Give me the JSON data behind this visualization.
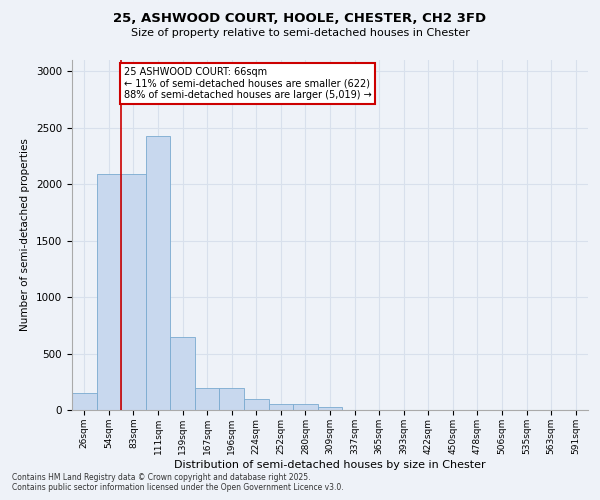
{
  "title_line1": "25, ASHWOOD COURT, HOOLE, CHESTER, CH2 3FD",
  "title_line2": "Size of property relative to semi-detached houses in Chester",
  "xlabel": "Distribution of semi-detached houses by size in Chester",
  "ylabel": "Number of semi-detached properties",
  "categories": [
    "26sqm",
    "54sqm",
    "83sqm",
    "111sqm",
    "139sqm",
    "167sqm",
    "196sqm",
    "224sqm",
    "252sqm",
    "280sqm",
    "309sqm",
    "337sqm",
    "365sqm",
    "393sqm",
    "422sqm",
    "450sqm",
    "478sqm",
    "506sqm",
    "535sqm",
    "563sqm",
    "591sqm"
  ],
  "bar_heights": [
    155,
    2090,
    2090,
    2430,
    650,
    195,
    195,
    95,
    55,
    55,
    30,
    0,
    0,
    0,
    0,
    0,
    0,
    0,
    0,
    0,
    0
  ],
  "bar_color": "#c8d8ee",
  "bar_edge_color": "#7aaad0",
  "grid_color": "#d8e0ec",
  "background_color": "#eef2f8",
  "vline_color": "#cc0000",
  "vline_x_index": 1.5,
  "annotation_title": "25 ASHWOOD COURT: 66sqm",
  "annotation_line1": "← 11% of semi-detached houses are smaller (622)",
  "annotation_line2": "88% of semi-detached houses are larger (5,019) →",
  "annotation_box_color": "#ffffff",
  "annotation_box_edge_color": "#cc0000",
  "footer_line1": "Contains HM Land Registry data © Crown copyright and database right 2025.",
  "footer_line2": "Contains public sector information licensed under the Open Government Licence v3.0.",
  "ylim": [
    0,
    3100
  ],
  "yticks": [
    0,
    500,
    1000,
    1500,
    2000,
    2500,
    3000
  ]
}
